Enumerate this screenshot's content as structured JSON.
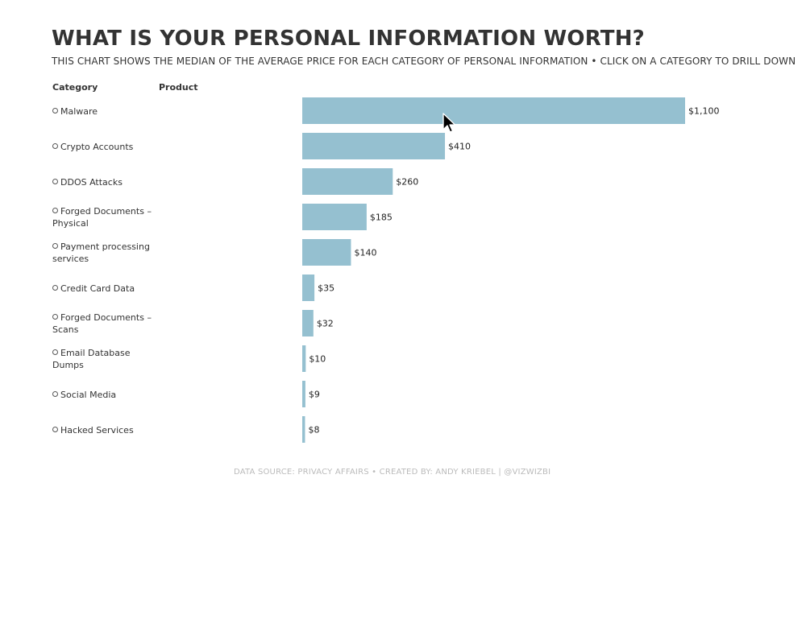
{
  "header": {
    "title": "WHAT IS YOUR PERSONAL INFORMATION WORTH?",
    "subtitle": "THIS CHART SHOWS THE MEDIAN OF THE AVERAGE PRICE FOR EACH CATEGORY OF PERSONAL INFORMATION  •  CLICK ON A CATEGORY TO DRILL DOWN"
  },
  "columns": {
    "category": "Category",
    "product": "Product"
  },
  "footer": {
    "text": "DATA SOURCE: PRIVACY AFFAIRS  •  CREATED BY: ANDY KRIEBEL | @VIZWIZBI"
  },
  "colors": {
    "bar": "#95c0d0",
    "text": "#333333"
  },
  "chart_data": {
    "type": "bar",
    "orientation": "horizontal",
    "title": "WHAT IS YOUR PERSONAL INFORMATION WORTH?",
    "xlabel": "",
    "ylabel": "Category",
    "xlim": [
      0,
      1100
    ],
    "grid": false,
    "categories": [
      "Malware",
      "Crypto Accounts",
      "DDOS Attacks",
      "Forged Documents – Physical",
      "Payment processing services",
      "Credit Card Data",
      "Forged Documents – Scans",
      "Email Database Dumps",
      "Social Media",
      "Hacked Services"
    ],
    "values": [
      1100,
      410,
      260,
      185,
      140,
      35,
      32,
      10,
      9,
      8
    ],
    "labels": [
      "$1,100",
      "$410",
      "$260",
      "$185",
      "$140",
      "$35",
      "$32",
      "$10",
      "$9",
      "$8"
    ]
  }
}
